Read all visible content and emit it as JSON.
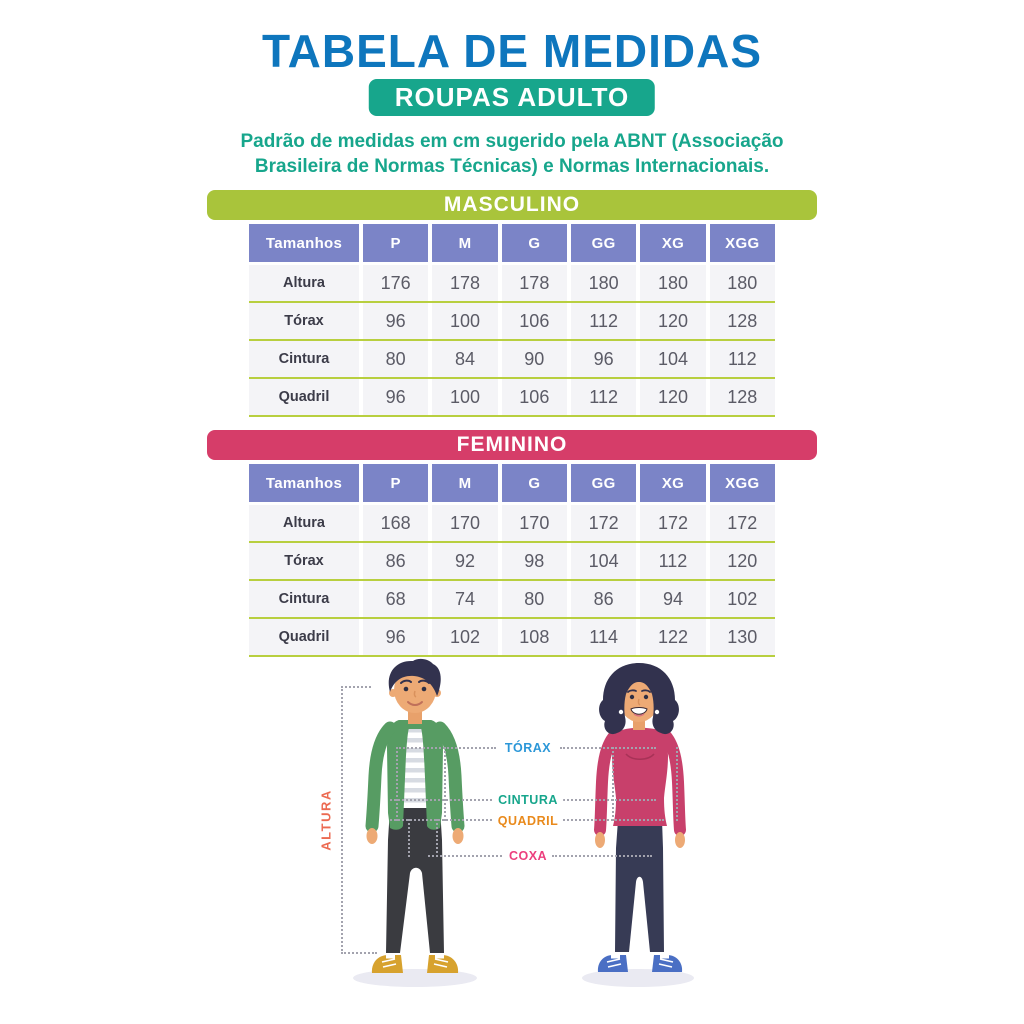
{
  "header": {
    "title": "TABELA DE MEDIDAS",
    "badge": "ROUPAS ADULTO",
    "subtitle_line1": "Padrão de medidas em cm sugerido pela ABNT (Associação",
    "subtitle_line2": "Brasileira de Normas Técnicas) e Normas Internacionais."
  },
  "colors": {
    "title-blue": "#0e76bd",
    "teal": "#17a68c",
    "banner-green": "#a9c43b",
    "banner-pink": "#d63d69",
    "header-purple": "#7b84c7",
    "row-bg": "#f4f4f7",
    "line-green": "#b8cf3f",
    "value-text": "#5b5b66",
    "label-text": "#3c3c49",
    "dotted-gray": "#a3a3ae"
  },
  "tables": [
    {
      "section": "MASCULINO",
      "banner_color": "#a9c43b",
      "columns": [
        "Tamanhos",
        "P",
        "M",
        "G",
        "GG",
        "XG",
        "XGG"
      ],
      "rows": [
        {
          "label": "Altura",
          "values": [
            "176",
            "178",
            "178",
            "180",
            "180",
            "180"
          ]
        },
        {
          "label": "Tórax",
          "values": [
            "96",
            "100",
            "106",
            "112",
            "120",
            "128"
          ]
        },
        {
          "label": "Cintura",
          "values": [
            "80",
            "84",
            "90",
            "96",
            "104",
            "112"
          ]
        },
        {
          "label": "Quadril",
          "values": [
            "96",
            "100",
            "106",
            "112",
            "120",
            "128"
          ]
        }
      ]
    },
    {
      "section": "FEMININO",
      "banner_color": "#d63d69",
      "columns": [
        "Tamanhos",
        "P",
        "M",
        "G",
        "GG",
        "XG",
        "XGG"
      ],
      "rows": [
        {
          "label": "Altura",
          "values": [
            "168",
            "170",
            "170",
            "172",
            "172",
            "172"
          ]
        },
        {
          "label": "Tórax",
          "values": [
            "86",
            "92",
            "98",
            "104",
            "112",
            "120"
          ]
        },
        {
          "label": "Cintura",
          "values": [
            "68",
            "74",
            "80",
            "86",
            "94",
            "102"
          ]
        },
        {
          "label": "Quadril",
          "values": [
            "96",
            "102",
            "108",
            "114",
            "122",
            "130"
          ]
        }
      ]
    }
  ],
  "diagram": {
    "labels": {
      "altura": "ALTURA",
      "torax": "TÓRAX",
      "cintura": "CINTURA",
      "quadril": "QUADRIL",
      "coxa": "COXA"
    },
    "label_colors": {
      "altura": "#ec6a51",
      "torax": "#2b97d8",
      "cintura": "#17a68c",
      "quadril": "#e98a1c",
      "coxa": "#ec3f7d"
    }
  }
}
